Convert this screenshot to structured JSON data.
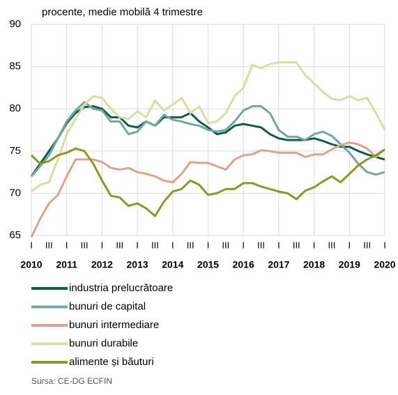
{
  "chart_data": {
    "type": "line",
    "subtitle": "procente, medie mobilă 4 trimestre",
    "categories": [
      "I",
      null,
      "III",
      null,
      "I",
      null,
      "III",
      null,
      "I",
      null,
      "III",
      null,
      "I",
      null,
      "III",
      null,
      "I",
      null,
      "III",
      null,
      "I",
      null,
      "III",
      null,
      "I",
      null,
      "III",
      null,
      "I",
      null,
      "III",
      null,
      "I",
      null,
      "III",
      null,
      "I",
      null,
      "III",
      null,
      "I"
    ],
    "year_labels": [
      "2010",
      "2011",
      "2012",
      "2013",
      "2014",
      "2015",
      "2016",
      "2017",
      "2018",
      "2019",
      "2020"
    ],
    "series": [
      {
        "name": "industria prelucrătoare",
        "color": "#0b5e4c",
        "values": [
          72,
          73.5,
          75,
          76.5,
          78.3,
          79.5,
          80.2,
          80.3,
          80,
          79,
          79,
          78,
          77.8,
          78.5,
          78,
          79,
          79,
          79,
          79.5,
          78.5,
          77.8,
          77,
          77.2,
          78,
          78.2,
          78,
          77.8,
          77,
          76.5,
          76.3,
          76.3,
          76.3,
          76.5,
          76.2,
          75.8,
          75.5,
          75.5,
          75,
          74.6,
          74.3,
          74
        ]
      },
      {
        "name": "bunuri de capital",
        "color": "#72a89c",
        "values": [
          72,
          73.2,
          74.5,
          76.5,
          78.5,
          79.8,
          80.8,
          80,
          79.8,
          78.5,
          78.5,
          77,
          77.3,
          78.5,
          78,
          79.3,
          78.7,
          78.5,
          78.2,
          78,
          77.5,
          77.3,
          77.5,
          78.5,
          79.8,
          80.3,
          80.3,
          79.5,
          77.5,
          76.7,
          76.7,
          76.3,
          77,
          77.3,
          76.8,
          75.8,
          74.8,
          73.5,
          72.5,
          72.2,
          72.5
        ]
      },
      {
        "name": "bunuri intermediare",
        "color": "#e2a18e",
        "values": [
          64.8,
          67,
          68.8,
          69.8,
          72,
          74,
          74,
          74,
          73.7,
          73,
          72.8,
          73,
          72.5,
          72.3,
          72,
          71.5,
          71.3,
          72.3,
          73.7,
          73.6,
          73.6,
          73.2,
          72.8,
          74,
          74.5,
          74.6,
          75.1,
          75,
          74.8,
          74.8,
          74.8,
          74.3,
          74.6,
          74.6,
          75.2,
          75.7,
          76,
          75.8,
          75.3,
          74.3,
          75.2
        ]
      },
      {
        "name": "bunuri durabile",
        "color": "#dadd9f",
        "values": [
          70.2,
          71,
          71.3,
          74,
          77,
          78.8,
          80.5,
          81.5,
          81.3,
          80,
          79,
          78.8,
          79.7,
          79,
          81,
          79.8,
          80.5,
          81.3,
          79.5,
          80.3,
          78.3,
          78.5,
          79.5,
          81.5,
          82.5,
          85.2,
          84.8,
          85.3,
          85.5,
          85.5,
          85.5,
          84,
          83,
          82,
          81.2,
          81,
          81.5,
          81,
          81.3,
          79.5,
          77.5
        ]
      },
      {
        "name": "alimente și băuturi",
        "color": "#8b9a1c",
        "values": [
          74.5,
          73.5,
          73.8,
          74.5,
          74.8,
          75.3,
          75,
          73.5,
          71.5,
          69.7,
          69.5,
          68.5,
          68.8,
          68.2,
          67.3,
          69,
          70.2,
          70.5,
          71.5,
          71,
          69.8,
          70,
          70.5,
          70.5,
          71.2,
          71.2,
          70.8,
          70.5,
          70.2,
          70,
          69.3,
          70.3,
          70.7,
          71.4,
          72,
          71.3,
          72.3,
          73.3,
          74,
          74.5,
          75.2
        ]
      }
    ],
    "ylim": [
      65,
      90
    ],
    "yticks": [
      65,
      70,
      75,
      80,
      85,
      90
    ],
    "grid": true,
    "source": "Sursa: CE-DG ECFIN"
  }
}
